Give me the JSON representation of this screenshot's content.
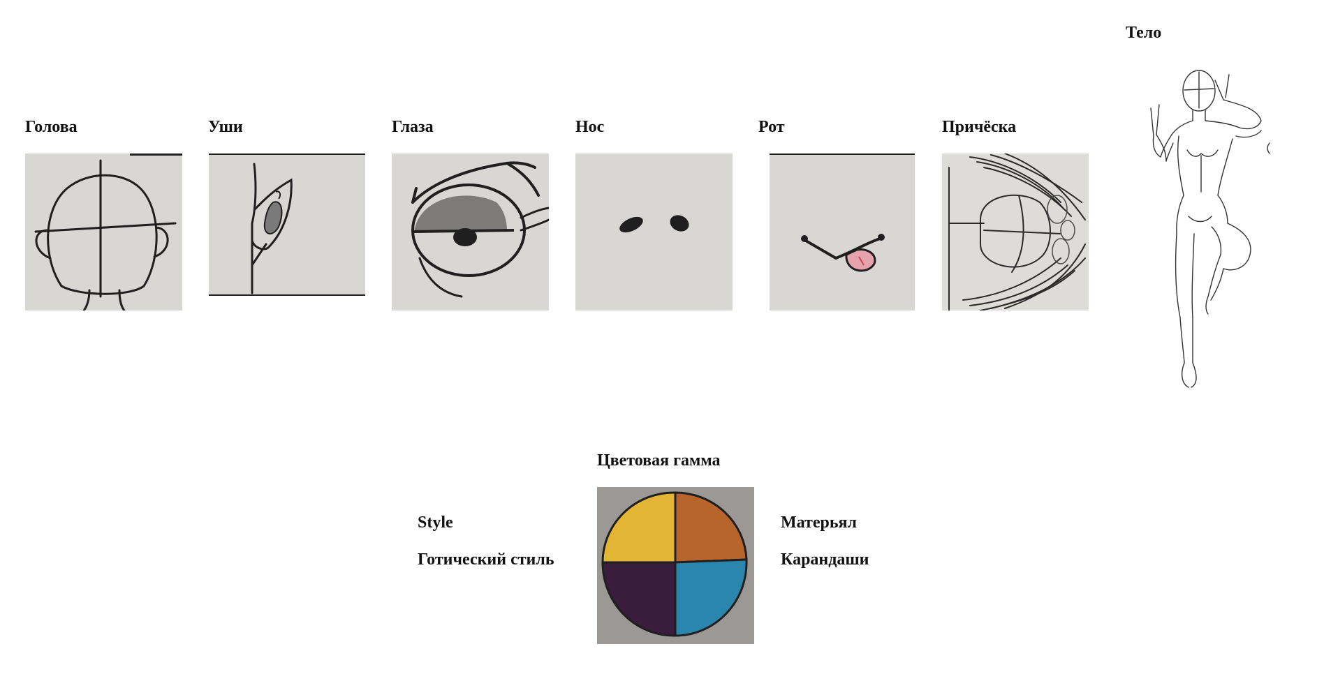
{
  "features": [
    {
      "id": "head",
      "label": "Голова",
      "icon": "head-sketch"
    },
    {
      "id": "ears",
      "label": "Уши",
      "icon": "ear-sketch"
    },
    {
      "id": "eyes",
      "label": "Глаза",
      "icon": "eye-sketch"
    },
    {
      "id": "nose",
      "label": "Нос",
      "icon": "nose-sketch"
    },
    {
      "id": "mouth",
      "label": "Рот",
      "icon": "mouth-sketch"
    },
    {
      "id": "hair",
      "label": "Причёска",
      "icon": "hair-sketch"
    }
  ],
  "body": {
    "label": "Тело",
    "icon": "body-pose-sketch"
  },
  "palette": {
    "label": "Цветовая гамма",
    "icon": "color-wheel",
    "colors": [
      "#e2b534",
      "#b8652b",
      "#3a1c3d",
      "#2a86ad"
    ]
  },
  "style": {
    "label": "Style",
    "value": "Готический стиль"
  },
  "material": {
    "label": "Матерьял",
    "value": "Карандаши"
  },
  "colors": {
    "text": "#111111",
    "paper": "#d9d7d4",
    "pencil": "#1f1f1f"
  }
}
